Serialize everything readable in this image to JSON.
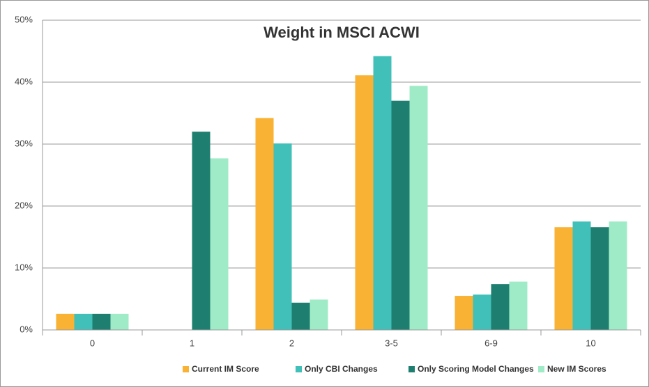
{
  "chart_data": {
    "type": "bar",
    "title": "Weight in MSCI ACWI",
    "categories": [
      "0",
      "1",
      "2",
      "3-5",
      "6-9",
      "10"
    ],
    "series": [
      {
        "name": "Current IM Score",
        "color": "#f9b233",
        "values": [
          2.6,
          0,
          34.2,
          41.1,
          5.5,
          16.6
        ]
      },
      {
        "name": "Only CBI Changes",
        "color": "#40c0b8",
        "values": [
          2.6,
          0,
          30.1,
          44.2,
          5.7,
          17.5
        ]
      },
      {
        "name": "Only Scoring Model Changes",
        "color": "#1e7f70",
        "values": [
          2.6,
          32.0,
          4.4,
          37.0,
          7.4,
          16.6
        ]
      },
      {
        "name": "New IM Scores",
        "color": "#a0ebc7",
        "values": [
          2.6,
          27.7,
          4.9,
          39.4,
          7.8,
          17.5
        ]
      }
    ],
    "ylim": [
      0,
      50
    ],
    "yticks": [
      {
        "value": 0,
        "label": "0%"
      },
      {
        "value": 10,
        "label": "10%"
      },
      {
        "value": 20,
        "label": "20%"
      },
      {
        "value": 30,
        "label": "30%"
      },
      {
        "value": 40,
        "label": "40%"
      },
      {
        "value": 50,
        "label": "50%"
      }
    ],
    "grid": true,
    "legend": "bottom"
  }
}
